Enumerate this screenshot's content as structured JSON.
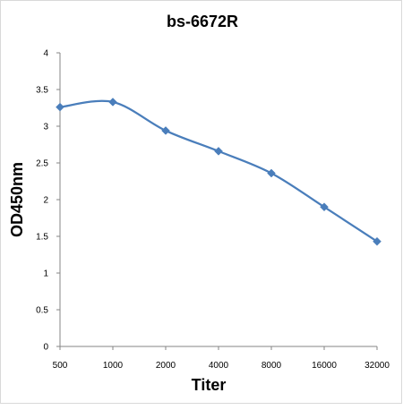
{
  "chart_data": {
    "type": "line",
    "title": "bs-6672R",
    "xlabel": "Titer",
    "ylabel": "OD450nm",
    "categories": [
      "500",
      "1000",
      "2000",
      "4000",
      "8000",
      "16000",
      "32000"
    ],
    "series": [
      {
        "values": [
          3.26,
          3.33,
          2.94,
          2.66,
          2.36,
          1.9,
          1.43
        ]
      }
    ],
    "ylim": [
      0,
      4
    ],
    "yticks": [
      "0",
      "0.5",
      "1",
      "1.5",
      "2",
      "2.5",
      "3",
      "3.5",
      "4"
    ],
    "grid": false,
    "legend": "none",
    "smooth": true,
    "marker": "diamond",
    "colors": {
      "series": "#4a7ebb",
      "axis": "#868686"
    }
  }
}
